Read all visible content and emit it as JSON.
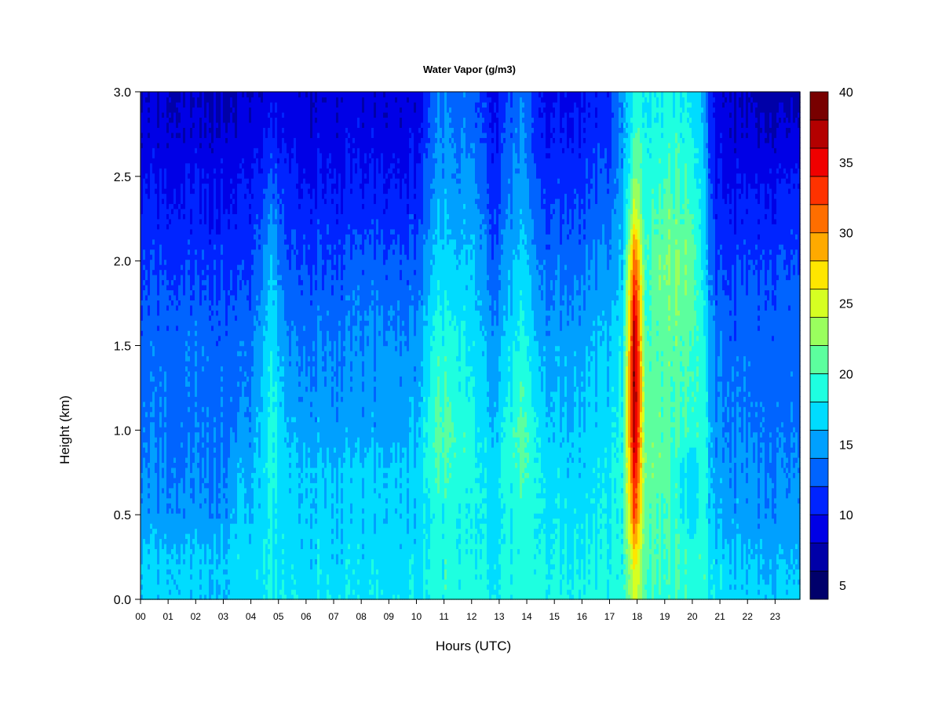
{
  "chart_data": {
    "type": "heatmap",
    "title": "Water Vapor (g/m3)",
    "xlabel": "Hours (UTC)",
    "ylabel": "Height (km)",
    "xlim": [
      0,
      23.9
    ],
    "ylim": [
      0,
      3.0
    ],
    "x_ticks": [
      "00",
      "01",
      "02",
      "03",
      "04",
      "05",
      "06",
      "07",
      "08",
      "09",
      "10",
      "11",
      "12",
      "13",
      "14",
      "15",
      "16",
      "17",
      "18",
      "19",
      "20",
      "21",
      "22",
      "23"
    ],
    "y_ticks": [
      "0.0",
      "0.5",
      "1.0",
      "1.5",
      "2.0",
      "2.5",
      "3.0"
    ],
    "colorbar": {
      "min": 4,
      "max": 40,
      "step": 2,
      "tick_labels": [
        "5",
        "10",
        "15",
        "20",
        "25",
        "30",
        "35",
        "40"
      ],
      "tick_values": [
        5,
        10,
        15,
        20,
        25,
        30,
        35,
        40
      ],
      "colors": [
        "#00006b",
        "#0000a8",
        "#0000e6",
        "#0024ff",
        "#0064ff",
        "#00a0ff",
        "#00dcff",
        "#1effe0",
        "#5cff9e",
        "#9aff5e",
        "#d6ff22",
        "#ffe600",
        "#ffaa00",
        "#ff6e00",
        "#ff3200",
        "#f00000",
        "#b40000",
        "#780000"
      ]
    },
    "height_grid_km": [
      0.0,
      0.25,
      0.5,
      0.75,
      1.0,
      1.25,
      1.5,
      1.75,
      2.0,
      2.25,
      2.5,
      2.75,
      3.0
    ],
    "profiles": [
      {
        "hour": 0.0,
        "values": [
          16.5,
          16.5,
          14.5,
          14,
          13.5,
          13,
          13,
          12,
          11.5,
          10.5,
          9.5,
          8.5,
          8
        ]
      },
      {
        "hour": 1.0,
        "values": [
          16.5,
          16.5,
          14.5,
          14,
          13.5,
          13.5,
          13,
          12.5,
          11.5,
          10.5,
          9.5,
          8.5,
          8
        ]
      },
      {
        "hour": 2.0,
        "values": [
          16.5,
          16.5,
          14.5,
          14,
          13.5,
          13.5,
          13.5,
          12.5,
          11.5,
          10.5,
          10,
          8.5,
          8
        ]
      },
      {
        "hour": 3.0,
        "values": [
          16.5,
          16.5,
          14.5,
          14,
          13.5,
          13.5,
          13,
          12.5,
          11.5,
          10.5,
          9.5,
          8.5,
          7.5
        ]
      },
      {
        "hour": 3.5,
        "values": [
          17,
          17,
          16,
          15.5,
          14,
          13,
          13,
          12,
          11,
          10.5,
          9.5,
          8.5,
          7.5
        ]
      },
      {
        "hour": 4.0,
        "values": [
          17,
          17,
          16,
          15.5,
          14.5,
          14,
          13.5,
          12.5,
          11.5,
          10.5,
          10,
          9,
          8
        ]
      },
      {
        "hour": 4.8,
        "values": [
          18.5,
          18,
          18,
          18.5,
          19,
          18.5,
          17.5,
          17,
          16,
          14.5,
          12,
          10.5,
          9
        ]
      },
      {
        "hour": 5.3,
        "values": [
          17.5,
          17,
          16.5,
          16.5,
          15.5,
          14.5,
          14,
          13,
          12,
          11,
          10.5,
          9.5,
          8.5
        ]
      },
      {
        "hour": 6.0,
        "values": [
          17.5,
          17,
          16.5,
          16.5,
          15,
          14.5,
          14,
          13,
          12,
          11,
          10,
          9,
          8.5
        ]
      },
      {
        "hour": 7.0,
        "values": [
          17.5,
          17,
          16.5,
          16.5,
          15,
          14.5,
          14,
          13,
          12,
          11,
          10,
          9,
          8.5
        ]
      },
      {
        "hour": 8.0,
        "values": [
          17.5,
          17,
          16.5,
          16.5,
          15,
          14.5,
          14,
          13.5,
          12.5,
          11,
          10,
          9,
          8.5
        ]
      },
      {
        "hour": 9.0,
        "values": [
          17.5,
          17,
          16.5,
          16.5,
          15,
          15,
          14.5,
          13.5,
          12.5,
          11,
          10,
          9,
          8.5
        ]
      },
      {
        "hour": 10.0,
        "values": [
          17.5,
          17,
          16.5,
          16.5,
          15.5,
          15,
          14.5,
          13.5,
          12.5,
          11,
          10,
          9,
          8.5
        ]
      },
      {
        "hour": 10.8,
        "values": [
          19,
          19,
          18.5,
          20.5,
          21,
          20,
          19.5,
          18,
          17,
          16,
          15,
          14.5,
          14
        ]
      },
      {
        "hour": 11.5,
        "values": [
          19,
          19,
          18.5,
          19.5,
          20,
          19,
          18.5,
          17.5,
          16.5,
          15.5,
          14.5,
          14,
          13.5
        ]
      },
      {
        "hour": 12.0,
        "values": [
          19,
          18.5,
          18,
          18.5,
          18.5,
          18,
          17.5,
          17,
          16,
          15.5,
          14.5,
          13.5,
          13
        ]
      },
      {
        "hour": 12.8,
        "values": [
          18,
          17.5,
          17,
          17,
          16,
          15,
          14.5,
          13.5,
          12.5,
          11.5,
          10.5,
          10,
          9.5
        ]
      },
      {
        "hour": 13.8,
        "values": [
          19,
          19,
          19,
          20.5,
          21,
          20,
          19,
          18,
          17,
          16,
          15,
          14.5,
          14
        ]
      },
      {
        "hour": 14.5,
        "values": [
          18.5,
          18,
          17.5,
          17.5,
          17,
          16,
          15,
          14,
          13,
          12,
          11,
          10,
          9.5
        ]
      },
      {
        "hour": 15.0,
        "values": [
          18.5,
          18,
          17.5,
          17,
          16,
          15.5,
          15,
          14,
          13,
          12,
          11,
          10,
          9.5
        ]
      },
      {
        "hour": 16.0,
        "values": [
          18.5,
          18,
          17.5,
          17,
          16.5,
          16,
          15.5,
          14.5,
          13.5,
          12.5,
          11.5,
          10.5,
          10
        ]
      },
      {
        "hour": 17.0,
        "values": [
          18.5,
          18,
          17.5,
          17.5,
          17,
          16.5,
          16,
          15,
          14,
          13,
          12,
          11,
          10.5
        ]
      },
      {
        "hour": 17.5,
        "values": [
          19,
          19,
          19,
          19,
          19,
          18.5,
          18,
          17,
          16.5,
          16,
          15.5,
          15,
          15
        ]
      },
      {
        "hour": 17.9,
        "values": [
          25,
          27,
          33,
          35,
          38,
          39,
          38,
          36,
          32,
          26,
          22,
          20,
          19
        ]
      },
      {
        "hour": 18.3,
        "values": [
          20,
          21,
          21,
          22,
          21.5,
          21,
          20.5,
          20,
          20,
          19.5,
          19,
          18.5,
          18
        ]
      },
      {
        "hour": 19.0,
        "values": [
          19.5,
          20,
          20,
          21,
          21,
          21,
          21,
          21.5,
          22,
          21,
          20,
          19,
          18.5
        ]
      },
      {
        "hour": 19.5,
        "values": [
          19.5,
          20,
          19,
          18.5,
          20,
          20.5,
          21,
          21.5,
          22,
          21,
          20,
          19,
          18.5
        ]
      },
      {
        "hour": 20.0,
        "values": [
          19.5,
          19.5,
          17,
          16.5,
          20,
          20.5,
          20.5,
          21,
          21.5,
          20.5,
          19.5,
          18.5,
          18
        ]
      },
      {
        "hour": 20.4,
        "values": [
          19,
          19,
          18.5,
          19,
          19,
          18.5,
          18,
          17.5,
          17,
          16.5,
          16,
          15.5,
          15
        ]
      },
      {
        "hour": 20.8,
        "values": [
          17.5,
          17,
          15.5,
          15,
          14.5,
          14,
          13.5,
          13,
          12,
          11,
          10,
          9.5,
          9
        ]
      },
      {
        "hour": 21.5,
        "values": [
          17,
          16,
          15,
          14.5,
          14,
          13.5,
          13,
          12.5,
          11.5,
          10.5,
          9.5,
          8.5,
          8
        ]
      },
      {
        "hour": 22.5,
        "values": [
          16.5,
          15.5,
          14.5,
          14,
          13.5,
          13,
          13,
          12.5,
          11.5,
          10.5,
          9.5,
          8,
          7
        ]
      },
      {
        "hour": 23.9,
        "values": [
          16.5,
          15.5,
          14.5,
          14,
          13.5,
          13,
          13,
          12.5,
          12,
          11,
          10,
          8.5,
          7
        ]
      }
    ]
  }
}
